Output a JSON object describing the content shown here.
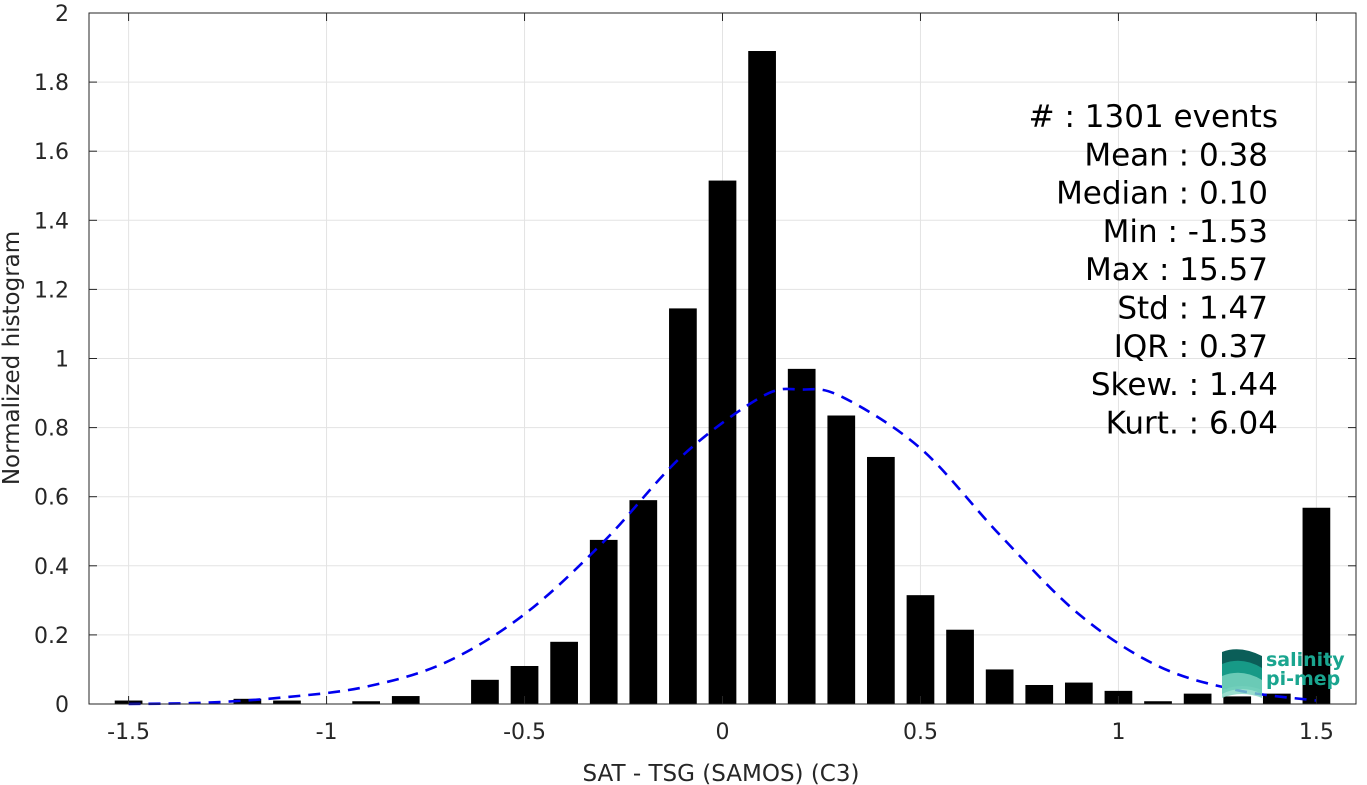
{
  "chart_data": {
    "type": "bar",
    "xlabel": "SAT - TSG (SAMOS) (C3)",
    "ylabel": "Normalized histogram",
    "xlim": [
      -1.6,
      1.6
    ],
    "ylim": [
      0,
      2
    ],
    "grid": true,
    "x_ticks": [
      -1.5,
      -1,
      -0.5,
      0,
      0.5,
      1,
      1.5
    ],
    "x_tick_labels": [
      "-1.5",
      "-1",
      "-0.5",
      "0",
      "0.5",
      "1",
      "1.5"
    ],
    "y_ticks": [
      0,
      0.2,
      0.4,
      0.6,
      0.8,
      1,
      1.2,
      1.4,
      1.6,
      1.8,
      2
    ],
    "y_tick_labels": [
      "0",
      "0.2",
      "0.4",
      "0.6",
      "0.8",
      "1",
      "1.2",
      "1.4",
      "1.6",
      "1.8",
      "2"
    ],
    "bar_width": 0.07,
    "bars": [
      {
        "x": -1.5,
        "value": 0.01
      },
      {
        "x": -1.2,
        "value": 0.015
      },
      {
        "x": -1.1,
        "value": 0.01
      },
      {
        "x": -0.9,
        "value": 0.008
      },
      {
        "x": -0.8,
        "value": 0.023
      },
      {
        "x": -0.6,
        "value": 0.07
      },
      {
        "x": -0.5,
        "value": 0.11
      },
      {
        "x": -0.4,
        "value": 0.18
      },
      {
        "x": -0.3,
        "value": 0.475
      },
      {
        "x": -0.2,
        "value": 0.59
      },
      {
        "x": -0.1,
        "value": 1.145
      },
      {
        "x": 0.0,
        "value": 1.515
      },
      {
        "x": 0.1,
        "value": 1.89
      },
      {
        "x": 0.2,
        "value": 0.97
      },
      {
        "x": 0.3,
        "value": 0.835
      },
      {
        "x": 0.4,
        "value": 0.715
      },
      {
        "x": 0.5,
        "value": 0.315
      },
      {
        "x": 0.6,
        "value": 0.215
      },
      {
        "x": 0.7,
        "value": 0.1
      },
      {
        "x": 0.8,
        "value": 0.055
      },
      {
        "x": 0.9,
        "value": 0.062
      },
      {
        "x": 1.0,
        "value": 0.038
      },
      {
        "x": 1.1,
        "value": 0.008
      },
      {
        "x": 1.2,
        "value": 0.03
      },
      {
        "x": 1.3,
        "value": 0.022
      },
      {
        "x": 1.4,
        "value": 0.03
      },
      {
        "x": 1.5,
        "value": 0.568
      }
    ],
    "fit_curve": {
      "style": "dashed",
      "color": "#0000ee",
      "points": [
        [
          -1.5,
          0.0
        ],
        [
          -1.3,
          0.004
        ],
        [
          -1.1,
          0.02
        ],
        [
          -0.9,
          0.05
        ],
        [
          -0.7,
          0.12
        ],
        [
          -0.5,
          0.26
        ],
        [
          -0.3,
          0.47
        ],
        [
          -0.1,
          0.72
        ],
        [
          0.1,
          0.89
        ],
        [
          0.2,
          0.91
        ],
        [
          0.3,
          0.89
        ],
        [
          0.5,
          0.74
        ],
        [
          0.7,
          0.49
        ],
        [
          0.9,
          0.26
        ],
        [
          1.1,
          0.11
        ],
        [
          1.3,
          0.04
        ],
        [
          1.5,
          0.01
        ]
      ]
    },
    "stats": [
      {
        "label": "#  : 1301 events"
      },
      {
        "label": "Mean : 0.38"
      },
      {
        "label": "Median : 0.10"
      },
      {
        "label": "Min : -1.53"
      },
      {
        "label": "Max : 15.57"
      },
      {
        "label": "Std : 1.47"
      },
      {
        "label": "IQR : 0.37"
      },
      {
        "label": "Skew. : 1.44"
      },
      {
        "label": "Kurt. : 6.04"
      }
    ]
  },
  "logo": {
    "line1": "salinity",
    "line2": "pi-mep",
    "colors": {
      "primary": "#1aa58f",
      "dark": "#0b5e58"
    }
  }
}
